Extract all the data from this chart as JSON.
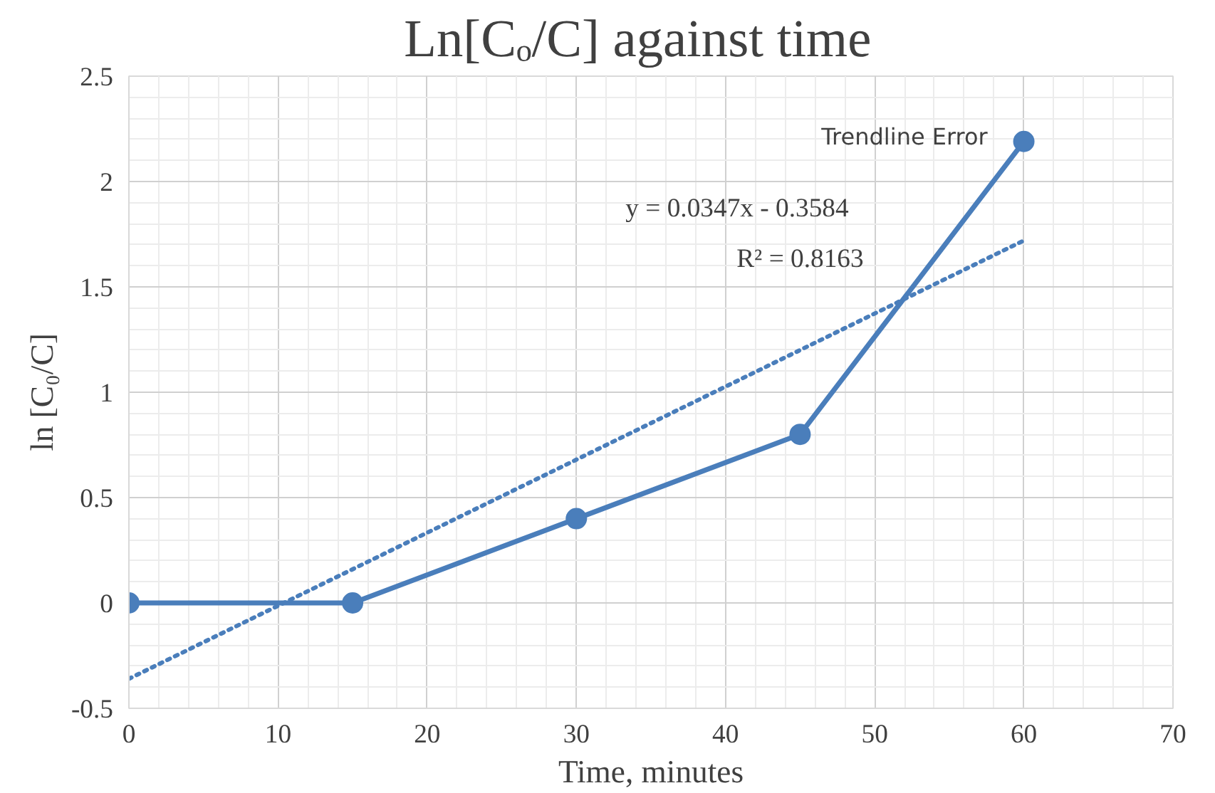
{
  "chart_data": {
    "type": "line",
    "title": "Ln[Cₒ/C]  against  time",
    "xlabel": "Time, minutes",
    "ylabel": "ln [C₀/C]",
    "x": [
      0,
      15,
      30,
      45,
      60
    ],
    "series": [
      {
        "color": "#4a7ebb",
        "values": [
          0,
          0,
          0.4,
          0.8,
          2.19
        ],
        "marker": "circle",
        "line_style": "solid"
      },
      {
        "type": "line",
        "x": [
          0,
          60
        ],
        "color": "#4a7ebb",
        "values": [
          -0.36,
          1.72
        ],
        "marker": "none",
        "line_style": "dotted"
      }
    ],
    "annotations": [
      "Trendline Error",
      "y = 0.0347x  - 0.3584",
      "R² = 0.8163"
    ],
    "xlim": [
      0,
      70
    ],
    "xticks": [
      0,
      10,
      20,
      30,
      40,
      50,
      60,
      70
    ],
    "ylim": [
      -0.5,
      2.5
    ],
    "yticks": [
      -0.5,
      0,
      0.5,
      1,
      1.5,
      2,
      2.5
    ],
    "grid": true
  }
}
